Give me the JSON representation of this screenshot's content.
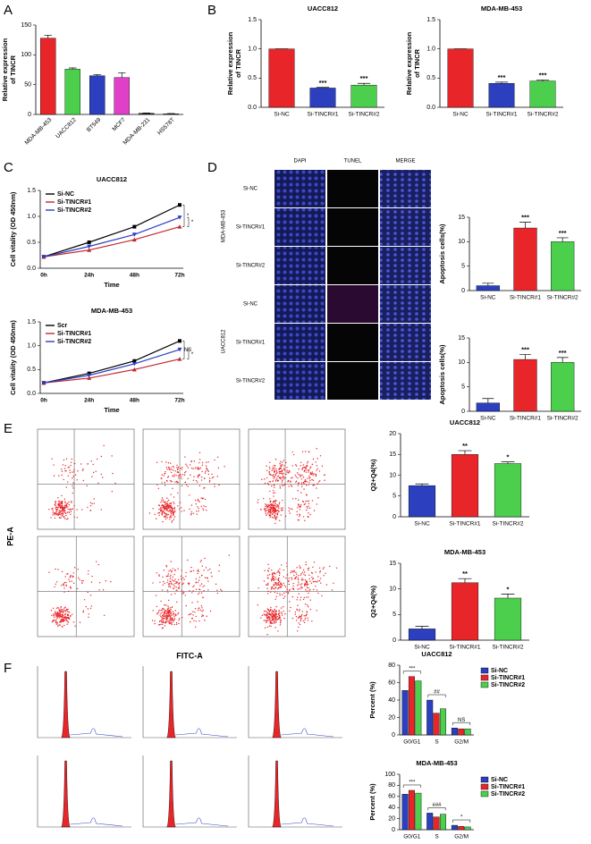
{
  "panel_labels": [
    "A",
    "B",
    "C",
    "D",
    "E",
    "F"
  ],
  "microscopy": {
    "columns": [
      "DAPI",
      "TUNEL",
      "MERGE"
    ],
    "groups": [
      {
        "name": "MDA-MB-453",
        "rows": [
          "Si-NC",
          "Si-TINCR#1",
          "Si-TINCR#2"
        ]
      },
      {
        "name": "UACC812",
        "rows": [
          "Si-NC",
          "Si-TINCR#1",
          "Si-TINCR#2"
        ]
      }
    ]
  },
  "flow": {
    "y_label": "PE-A",
    "x_label": "FITC-A"
  },
  "chart_data": [
    {
      "type": "bar",
      "ylabel": [
        "Relative expression",
        "of TINCR"
      ],
      "categories": [
        "MDA-MB-453",
        "UACC812",
        "BT549",
        "MCF7",
        "MDA-MB-231",
        "HS578T"
      ],
      "values": [
        128,
        76,
        65,
        62,
        2,
        1
      ],
      "errors": [
        5,
        2,
        2,
        8,
        0.5,
        0.5
      ],
      "colors": [
        "#e8262a",
        "#4ccf4c",
        "#2b3fbf",
        "#e040c8",
        "#333333",
        "#333333"
      ],
      "ylim": [
        0,
        150
      ],
      "yticks": [
        0,
        50,
        100,
        150
      ],
      "xtick_rotation": -45
    },
    {
      "type": "bar",
      "title": "UACC812",
      "ylabel": [
        "Relative expression",
        "of TINCR"
      ],
      "categories": [
        "Si-NC",
        "Si-TINCR#1",
        "Si-TINCR#2"
      ],
      "values": [
        1,
        0.33,
        0.38
      ],
      "errors": [
        0,
        0.01,
        0.03
      ],
      "colors": [
        "#e8262a",
        "#2b3fbf",
        "#4ccf4c"
      ],
      "annotations": [
        null,
        "***",
        "***"
      ],
      "ylim": [
        0,
        1.5
      ],
      "yticks": [
        {
          "value": 0,
          "label": "0.0"
        },
        0.5,
        {
          "value": 1,
          "label": "1.0"
        },
        1.5
      ]
    },
    {
      "type": "bar",
      "title": "MDA-MB-453",
      "ylabel": [
        "Relative expression",
        "of TINCR"
      ],
      "categories": [
        "Si-NC",
        "Si-TINCR#1",
        "Si-TINCR#2"
      ],
      "values": [
        1,
        0.41,
        0.45
      ],
      "errors": [
        0,
        0.02,
        0.02
      ],
      "colors": [
        "#e8262a",
        "#2b3fbf",
        "#4ccf4c"
      ],
      "annotations": [
        null,
        "***",
        "***"
      ],
      "ylim": [
        0,
        1.5
      ],
      "yticks": [
        {
          "value": 0,
          "label": "0.0"
        },
        0.5,
        {
          "value": 1,
          "label": "1.0"
        },
        1.5
      ]
    },
    {
      "type": "line",
      "title": "UACC812",
      "xlabel": "Time",
      "ylabel": [
        "Cell vitality (OD 450nm)"
      ],
      "categories": [
        "0h",
        "24h",
        "48h",
        "72h"
      ],
      "series": [
        {
          "name": "Si-NC",
          "color": "#000000",
          "values": [
            0.22,
            0.5,
            0.8,
            1.22
          ]
        },
        {
          "name": "Si-TINCR#1",
          "color": "#c0282a",
          "values": [
            0.22,
            0.35,
            0.55,
            0.8
          ]
        },
        {
          "name": "Si-TINCR#2",
          "color": "#2b3fbf",
          "values": [
            0.22,
            0.42,
            0.65,
            0.98
          ]
        }
      ],
      "annotations": [
        "*",
        "*"
      ],
      "legend": "upper left",
      "ylim": [
        0,
        1.5
      ],
      "yticks": [
        {
          "value": 0,
          "label": "0.0"
        },
        0.5,
        {
          "value": 1,
          "label": "1.0"
        },
        1.5
      ]
    },
    {
      "type": "line",
      "title": "MDA-MB-453",
      "xlabel": "Time",
      "ylabel": [
        "Cell vitality (OD 450nm)"
      ],
      "categories": [
        "0h",
        "24h",
        "48h",
        "72h"
      ],
      "series": [
        {
          "name": "Scr",
          "color": "#000000",
          "values": [
            0.22,
            0.42,
            0.68,
            1.1
          ]
        },
        {
          "name": "Si-TINCR#1",
          "color": "#c0282a",
          "values": [
            0.22,
            0.32,
            0.5,
            0.72
          ]
        },
        {
          "name": "Si-TINCR#2",
          "color": "#2b3fbf",
          "values": [
            0.22,
            0.38,
            0.62,
            0.92
          ]
        }
      ],
      "annotations": [
        "NS",
        "*"
      ],
      "legend": "upper left",
      "ylim": [
        0,
        1.5
      ],
      "yticks": [
        {
          "value": 0,
          "label": "0.0"
        },
        0.5,
        {
          "value": 1,
          "label": "1.0"
        },
        1.5
      ]
    },
    {
      "type": "bar",
      "ylabel": [
        "Apoptosis cells(%)"
      ],
      "categories": [
        "Si-NC",
        "Si-TINCR#1",
        "Si-TINCR#2"
      ],
      "values": [
        1,
        12.8,
        10
      ],
      "errors": [
        0.5,
        1.2,
        0.8
      ],
      "colors": [
        "#2b3fbf",
        "#e8262a",
        "#4ccf4c"
      ],
      "annotations": [
        null,
        "***",
        "***"
      ],
      "ylim": [
        0,
        15
      ],
      "yticks": [
        0,
        5,
        10,
        15
      ]
    },
    {
      "type": "bar",
      "ylabel": [
        "Apoptosis cells(%)"
      ],
      "categories": [
        "Si-NC",
        "Si-TINCR#1",
        "Si-TINCR#2"
      ],
      "values": [
        1.7,
        10.6,
        10
      ],
      "errors": [
        0.9,
        1,
        1
      ],
      "colors": [
        "#2b3fbf",
        "#e8262a",
        "#4ccf4c"
      ],
      "annotations": [
        null,
        "***",
        "***"
      ],
      "ylim": [
        0,
        15
      ],
      "yticks": [
        0,
        5,
        10,
        15
      ]
    },
    {
      "type": "bar",
      "title": "UACC812",
      "ylabel": [
        "Q2+Q4(%)"
      ],
      "categories": [
        "Si-NC",
        "Si-TINCR#1",
        "Si-TINCR#2"
      ],
      "values": [
        7.5,
        15,
        12.8
      ],
      "errors": [
        0.4,
        0.9,
        0.4
      ],
      "colors": [
        "#2b3fbf",
        "#e8262a",
        "#4ccf4c"
      ],
      "annotations": [
        null,
        "**",
        "*"
      ],
      "ylim": [
        0,
        20
      ],
      "yticks": [
        0,
        5,
        10,
        15,
        20
      ]
    },
    {
      "type": "bar",
      "title": "MDA-MB-453",
      "ylabel": [
        "Q2+Q4(%)"
      ],
      "categories": [
        "Si-NC",
        "Si-TINCR#1",
        "Si-TINCR#2"
      ],
      "values": [
        2.2,
        11.2,
        8.2
      ],
      "errors": [
        0.5,
        0.8,
        0.8
      ],
      "colors": [
        "#2b3fbf",
        "#e8262a",
        "#4ccf4c"
      ],
      "annotations": [
        null,
        "**",
        "*"
      ],
      "ylim": [
        0,
        15
      ],
      "yticks": [
        0,
        5,
        10,
        15
      ]
    },
    {
      "type": "bar",
      "title": "UACC812",
      "ylabel": [
        "Percent (%)"
      ],
      "categories": [
        "G0/G1",
        "S",
        "G2/M"
      ],
      "series": [
        {
          "name": "Si-NC",
          "color": "#2b3fbf",
          "values": [
            51,
            40,
            8
          ]
        },
        {
          "name": "Si-TINCR#1",
          "color": "#e8262a",
          "values": [
            67,
            25,
            7
          ]
        },
        {
          "name": "Si-TINCR#2",
          "color": "#4ccf4c",
          "values": [
            62,
            30,
            7
          ]
        }
      ],
      "annotations": [
        "***",
        "##",
        "NS"
      ],
      "legend": "upper right",
      "ylim": [
        0,
        80
      ],
      "yticks": [
        0,
        20,
        40,
        60,
        80
      ]
    },
    {
      "type": "bar",
      "title": "MDA-MB-453",
      "ylabel": [
        "Percent (%)"
      ],
      "categories": [
        "G0/G1",
        "S",
        "G2/M"
      ],
      "series": [
        {
          "name": "Si-NC",
          "color": "#2b3fbf",
          "values": [
            64,
            30,
            8
          ]
        },
        {
          "name": "Si-TINCR#1",
          "color": "#e8262a",
          "values": [
            71,
            23,
            6
          ]
        },
        {
          "name": "Si-TINCR#2",
          "color": "#4ccf4c",
          "values": [
            66,
            28,
            5
          ]
        }
      ],
      "annotations": [
        "***",
        "###",
        "*"
      ],
      "legend": "upper right",
      "ylim": [
        0,
        100
      ],
      "yticks": [
        0,
        20,
        40,
        60,
        80,
        100
      ]
    }
  ]
}
